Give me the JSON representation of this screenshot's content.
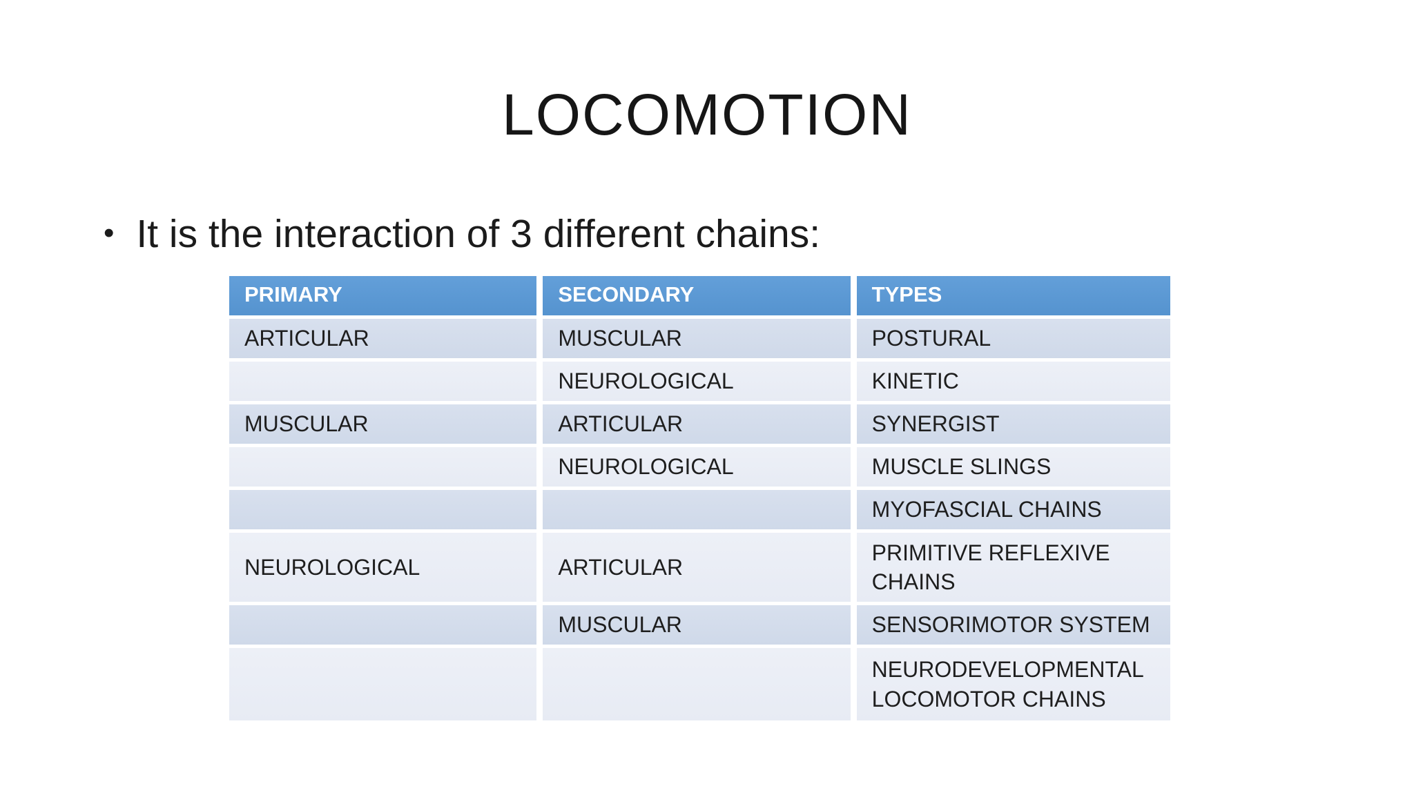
{
  "slide": {
    "title": "LOCOMOTION",
    "bullet_glyph": "•",
    "bullet_text": "It is the interaction of 3 different chains:"
  },
  "table": {
    "columns": [
      "PRIMARY",
      "SECONDARY",
      "TYPES"
    ],
    "rows": [
      [
        "ARTICULAR",
        "MUSCULAR",
        "POSTURAL"
      ],
      [
        "",
        "NEUROLOGICAL",
        "KINETIC"
      ],
      [
        "MUSCULAR",
        "ARTICULAR",
        "SYNERGIST"
      ],
      [
        "",
        "NEUROLOGICAL",
        "MUSCLE SLINGS"
      ],
      [
        "",
        "",
        "MYOFASCIAL CHAINS"
      ],
      [
        "NEUROLOGICAL",
        "ARTICULAR",
        "PRIMITIVE REFLEXIVE CHAINS"
      ],
      [
        "",
        "MUSCULAR",
        "SENSORIMOTOR SYSTEM"
      ],
      [
        "",
        "",
        "NEURODEVELOPMENTAL LOCOMOTOR CHAINS"
      ]
    ]
  },
  "colors": {
    "header_bg": "#5B9BD5",
    "header_text": "#FFFFFF",
    "band_dark": "#D2DBEA",
    "band_light": "#E9EDF5",
    "cell_text": "#1E1E1E",
    "slide_bg": "#FFFFFF"
  }
}
